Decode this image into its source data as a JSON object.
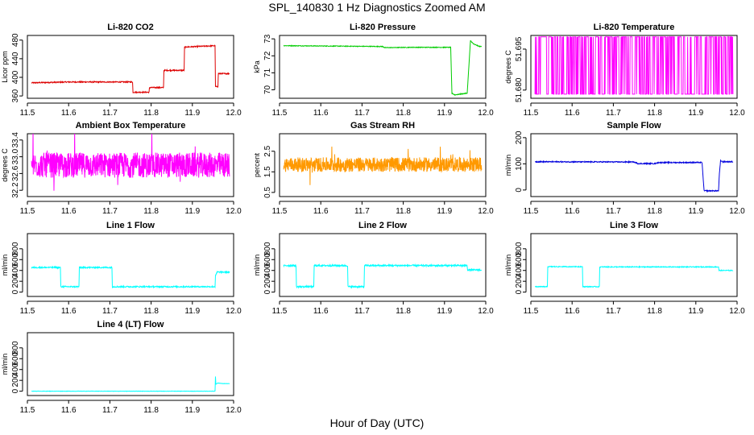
{
  "figure": {
    "title": "SPL_140830  1 Hz Diagnostics Zoomed AM",
    "xlabel": "Hour of Day (UTC)"
  },
  "chart_data": [
    {
      "type": "line",
      "title": "Li-820 CO2",
      "ylabel": "Licor ppm",
      "color": "#dd0000",
      "xlim": [
        11.5,
        12.0
      ],
      "xticks": [
        "11.5",
        "11.6",
        "11.7",
        "11.8",
        "11.9",
        "12.0"
      ],
      "ylim": [
        355,
        490
      ],
      "yticks": [
        "360",
        "400",
        "440",
        "480"
      ],
      "series": [
        {
          "x": [
            11.5,
            11.6,
            11.755,
            11.756,
            11.795,
            11.796,
            11.83,
            11.831,
            11.88,
            11.881,
            11.955,
            11.956,
            11.962,
            11.963,
            12.0
          ],
          "y": [
            388,
            390,
            390,
            368,
            368,
            378,
            378,
            415,
            415,
            465,
            468,
            380,
            380,
            408,
            408
          ]
        }
      ],
      "noise": 1.2
    },
    {
      "type": "line",
      "title": "Li-820 Pressure",
      "ylabel": "kPa",
      "color": "#00cc00",
      "xlim": [
        11.5,
        12.0
      ],
      "xticks": [
        "11.5",
        "11.6",
        "11.7",
        "11.8",
        "11.9",
        "12.0"
      ],
      "ylim": [
        69.5,
        73.2
      ],
      "yticks": [
        "70",
        "71",
        "72",
        "73"
      ],
      "series": [
        {
          "x": [
            11.5,
            11.75,
            11.755,
            11.82,
            11.915,
            11.918,
            11.925,
            11.94,
            11.955,
            11.963,
            11.97,
            11.985,
            12.0
          ],
          "y": [
            72.6,
            72.55,
            72.48,
            72.5,
            72.5,
            69.8,
            69.7,
            69.75,
            69.8,
            72.9,
            72.7,
            72.55,
            72.55
          ]
        }
      ],
      "noise": 0.02
    },
    {
      "type": "line",
      "title": "Li-820 Temperature",
      "ylabel": "degrees C",
      "color": "#ff00ff",
      "xlim": [
        11.5,
        12.0
      ],
      "xticks": [
        "11.5",
        "11.6",
        "11.7",
        "11.8",
        "11.9",
        "12.0"
      ],
      "ylim": [
        51.677,
        51.7
      ],
      "yticks": [
        "51.680",
        "51.695"
      ],
      "series": [
        {
          "x": [
            11.5,
            12.0
          ],
          "y": [
            51.6785,
            51.6995
          ]
        }
      ],
      "mode": "toggle"
    },
    {
      "type": "line",
      "title": "Ambient Box Temperature",
      "ylabel": "degrees C",
      "color": "#ff00ff",
      "xlim": [
        11.5,
        12.0
      ],
      "xticks": [
        "11.5",
        "11.6",
        "11.7",
        "11.8",
        "11.9",
        "12.0"
      ],
      "ylim": [
        32.05,
        33.55
      ],
      "yticks": [
        "32.2",
        "32.6",
        "33.0",
        "33.4"
      ],
      "series": [
        {
          "x": [
            11.5,
            12.0
          ],
          "y": [
            32.8,
            32.8
          ]
        }
      ],
      "noise": 0.3,
      "mode": "dense"
    },
    {
      "type": "line",
      "title": "Gas Stream RH",
      "ylabel": "percent",
      "color": "#ff9900",
      "xlim": [
        11.5,
        12.0
      ],
      "xticks": [
        "11.5",
        "11.6",
        "11.7",
        "11.8",
        "11.9",
        "12.0"
      ],
      "ylim": [
        0.3,
        3.35
      ],
      "yticks": [
        "0.5",
        "1.5",
        "2.5"
      ],
      "series": [
        {
          "x": [
            11.5,
            12.0
          ],
          "y": [
            1.85,
            1.85
          ]
        }
      ],
      "noise": 0.35,
      "mode": "dense"
    },
    {
      "type": "line",
      "title": "Sample Flow",
      "ylabel": "ml/min",
      "color": "#0000dd",
      "xlim": [
        11.5,
        12.0
      ],
      "xticks": [
        "11.5",
        "11.6",
        "11.7",
        "11.8",
        "11.9",
        "12.0"
      ],
      "ylim": [
        -25,
        215
      ],
      "yticks": [
        "0",
        "100",
        "200"
      ],
      "series": [
        {
          "x": [
            11.5,
            11.75,
            11.76,
            11.8,
            11.81,
            11.915,
            11.92,
            11.955,
            11.957,
            11.96,
            11.965,
            12.0
          ],
          "y": [
            108,
            107,
            101,
            101,
            105,
            105,
            -3,
            -3,
            60,
            112,
            108,
            108
          ]
        }
      ],
      "noise": 2
    },
    {
      "type": "line",
      "title": "Line 1 Flow",
      "ylabel": "ml/min",
      "color": "#00ffff",
      "xlim": [
        11.5,
        12.0
      ],
      "xticks": [
        "11.5",
        "11.6",
        "11.7",
        "11.8",
        "11.9",
        "12.0"
      ],
      "ylim": [
        -80,
        1080
      ],
      "yticks": [
        "0",
        "200",
        "400",
        "600",
        "800"
      ],
      "series": [
        {
          "x": [
            11.5,
            11.58,
            11.581,
            11.625,
            11.626,
            11.705,
            11.706,
            11.955,
            11.956,
            11.96,
            12.0
          ],
          "y": [
            455,
            455,
            100,
            100,
            455,
            455,
            100,
            100,
            300,
            370,
            370
          ]
        }
      ],
      "noise": 12
    },
    {
      "type": "line",
      "title": "Line 2 Flow",
      "ylabel": "ml/min",
      "color": "#00ffff",
      "xlim": [
        11.5,
        12.0
      ],
      "xticks": [
        "11.5",
        "11.6",
        "11.7",
        "11.8",
        "11.9",
        "12.0"
      ],
      "ylim": [
        -80,
        1080
      ],
      "yticks": [
        "0",
        "200",
        "400",
        "600",
        "800"
      ],
      "series": [
        {
          "x": [
            11.5,
            11.54,
            11.541,
            11.583,
            11.584,
            11.665,
            11.666,
            11.705,
            11.706,
            11.955,
            11.956,
            12.0
          ],
          "y": [
            490,
            490,
            100,
            100,
            490,
            490,
            100,
            100,
            490,
            490,
            410,
            410
          ]
        }
      ],
      "noise": 15
    },
    {
      "type": "line",
      "title": "Line 3 Flow",
      "ylabel": "ml/min",
      "color": "#00ffff",
      "xlim": [
        11.5,
        12.0
      ],
      "xticks": [
        "11.5",
        "11.6",
        "11.7",
        "11.8",
        "11.9",
        "12.0"
      ],
      "ylim": [
        -80,
        1080
      ],
      "yticks": [
        "0",
        "200",
        "400",
        "600",
        "800"
      ],
      "series": [
        {
          "x": [
            11.5,
            11.54,
            11.541,
            11.625,
            11.626,
            11.666,
            11.667,
            11.955,
            11.956,
            12.0
          ],
          "y": [
            100,
            100,
            470,
            470,
            100,
            100,
            465,
            465,
            400,
            400
          ]
        }
      ],
      "noise": 8
    },
    {
      "type": "line",
      "title": "Line 4 (LT) Flow",
      "ylabel": "ml/min",
      "color": "#00ffff",
      "xlim": [
        11.5,
        12.0
      ],
      "xticks": [
        "11.5",
        "11.6",
        "11.7",
        "11.8",
        "11.9",
        "12.0"
      ],
      "ylim": [
        -80,
        1080
      ],
      "yticks": [
        "0",
        "200",
        "400",
        "600",
        "800"
      ],
      "series": [
        {
          "x": [
            11.5,
            11.955,
            11.956,
            11.957,
            11.962,
            11.975,
            12.0
          ],
          "y": [
            0,
            0,
            270,
            130,
            150,
            140,
            140
          ]
        }
      ],
      "noise": 3
    }
  ]
}
